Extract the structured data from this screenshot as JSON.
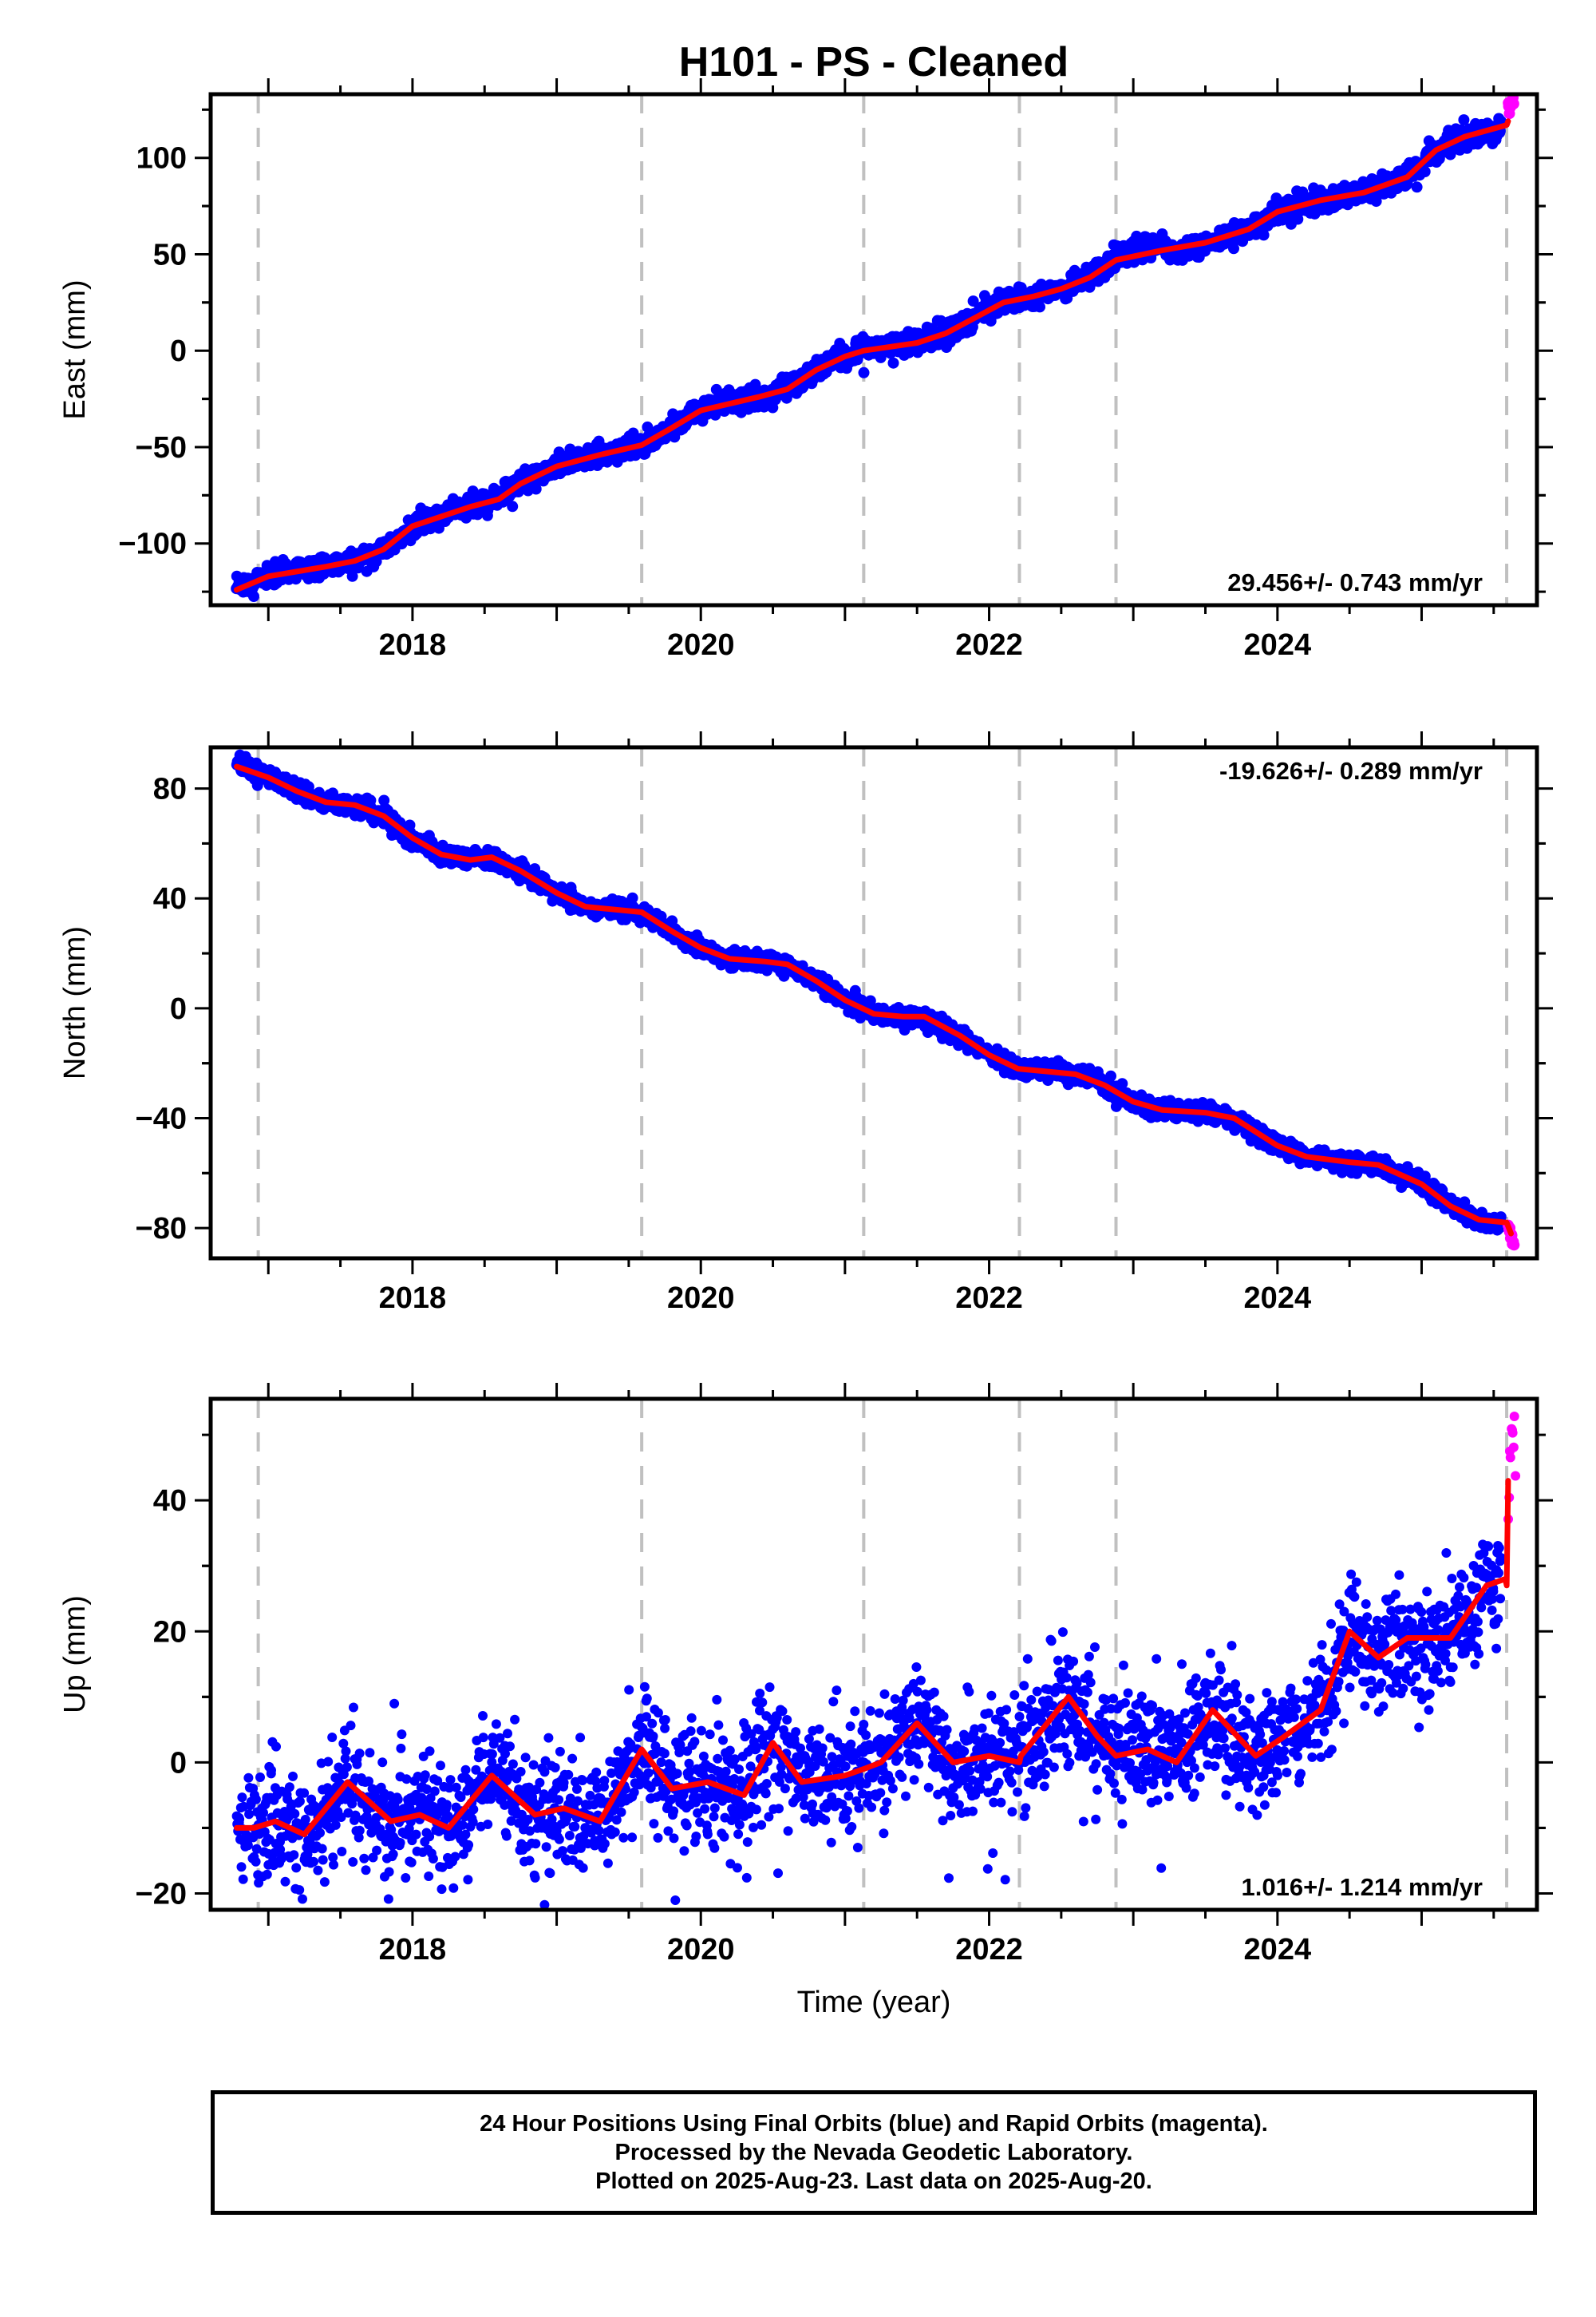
{
  "title": "H101  - PS - Cleaned",
  "colors": {
    "final": "#0000ff",
    "rapid": "#ff00ff",
    "model": "#ff0000",
    "grid": "#c0c0c0"
  },
  "xlabel": "Time (year)",
  "footer": {
    "line1": "24 Hour Positions Using Final Orbits (blue) and Rapid Orbits (magenta).",
    "line2": "Processed by the Nevada Geodetic Laboratory.",
    "line3": "Plotted on 2025-Aug-23. Last data on 2025-Aug-20."
  },
  "chart_data": [
    {
      "type": "scatter",
      "component": "east",
      "ylabel": "East (mm)",
      "xlim": [
        2016.6,
        2025.8
      ],
      "ylim": [
        -132,
        133
      ],
      "xticks": [
        2018,
        2020,
        2022,
        2024
      ],
      "xtick_labels": [
        "2018",
        "2020",
        "2022",
        "2024"
      ],
      "yticks": [
        -100,
        -50,
        0,
        50,
        100
      ],
      "ytick_labels": [
        "−100",
        "−50",
        "0",
        "50",
        "100"
      ],
      "event_lines": [
        2016.93,
        2019.59,
        2021.13,
        2022.21,
        2022.88,
        2025.59
      ],
      "rate_label": "29.456+/- 0.743 mm/yr",
      "rate_position": "bottom-right",
      "series": [
        {
          "kind": "final-orbits",
          "x": [
            2016.78,
            2016.9,
            2017.0,
            2017.2,
            2017.4,
            2017.6,
            2017.8,
            2018.0,
            2018.2,
            2018.4,
            2018.6,
            2018.75,
            2019.0,
            2019.3,
            2019.59,
            2019.8,
            2020.0,
            2020.2,
            2020.4,
            2020.6,
            2020.8,
            2021.0,
            2021.13,
            2021.3,
            2021.5,
            2021.7,
            2021.9,
            2022.1,
            2022.3,
            2022.5,
            2022.7,
            2022.88,
            2023.1,
            2023.2,
            2023.25,
            2023.5,
            2023.8,
            2024.0,
            2024.3,
            2024.6,
            2024.9,
            2025.1,
            2025.3,
            2025.55
          ],
          "y": [
            -125,
            -120,
            -117,
            -113,
            -112,
            -109,
            -103,
            -91,
            -85,
            -81,
            -77,
            -68,
            -60,
            -54,
            -49,
            -40,
            -31,
            -27,
            -24,
            -20,
            -10,
            -3,
            1,
            2,
            4,
            9,
            17,
            25,
            28,
            32,
            38,
            48,
            54,
            56,
            50,
            55,
            63,
            72,
            78,
            82,
            90,
            104,
            110,
            116
          ],
          "scatter": 2.8
        },
        {
          "kind": "rapid-orbits",
          "x": [
            2025.6,
            2025.62,
            2025.64
          ],
          "y": [
            125,
            128,
            130
          ],
          "scatter": 1.5
        },
        {
          "kind": "model",
          "x": [
            2016.78,
            2017.0,
            2017.4,
            2017.6,
            2017.8,
            2018.0,
            2018.4,
            2018.6,
            2018.75,
            2019.0,
            2019.3,
            2019.59,
            2019.8,
            2020.0,
            2020.4,
            2020.6,
            2020.8,
            2021.0,
            2021.13,
            2021.5,
            2021.7,
            2021.9,
            2022.1,
            2022.3,
            2022.5,
            2022.7,
            2022.88,
            2023.2,
            2023.5,
            2023.8,
            2024.0,
            2024.3,
            2024.6,
            2024.9,
            2025.1,
            2025.3,
            2025.59,
            2025.6
          ],
          "y": [
            -124,
            -117,
            -112,
            -109,
            -103,
            -91,
            -81,
            -77,
            -69,
            -60,
            -54,
            -49,
            -40,
            -31,
            -24,
            -20,
            -10,
            -3,
            0,
            4,
            9,
            17,
            25,
            28,
            32,
            38,
            47,
            52,
            56,
            63,
            72,
            78,
            82,
            90,
            104,
            111,
            117,
            119
          ]
        }
      ]
    },
    {
      "type": "scatter",
      "component": "north",
      "ylabel": "North (mm)",
      "xlim": [
        2016.6,
        2025.8
      ],
      "ylim": [
        -91,
        95
      ],
      "xticks": [
        2018,
        2020,
        2022,
        2024
      ],
      "xtick_labels": [
        "2018",
        "2020",
        "2022",
        "2024"
      ],
      "yticks": [
        -80,
        -40,
        0,
        40,
        80
      ],
      "ytick_labels": [
        "−80",
        "−40",
        "0",
        "40",
        "80"
      ],
      "event_lines": [
        2016.93,
        2019.59,
        2021.13,
        2022.21,
        2022.88,
        2025.59
      ],
      "rate_label": "-19.626+/- 0.289 mm/yr",
      "rate_position": "top-right",
      "series": [
        {
          "kind": "final-orbits",
          "x": [
            2016.78,
            2017.0,
            2017.2,
            2017.4,
            2017.6,
            2017.8,
            2018.0,
            2018.2,
            2018.4,
            2018.55,
            2018.75,
            2019.0,
            2019.2,
            2019.59,
            2019.8,
            2020.0,
            2020.2,
            2020.45,
            2020.6,
            2020.8,
            2021.0,
            2021.2,
            2021.4,
            2021.55,
            2021.8,
            2022.0,
            2022.2,
            2022.4,
            2022.6,
            2022.8,
            2023.0,
            2023.2,
            2023.5,
            2023.7,
            2024.0,
            2024.2,
            2024.5,
            2024.7,
            2025.0,
            2025.2,
            2025.4,
            2025.55
          ],
          "y": [
            89,
            84,
            79,
            75,
            74,
            70,
            62,
            56,
            54,
            55,
            50,
            42,
            37,
            35,
            28,
            22,
            18,
            17,
            16,
            10,
            3,
            -2,
            -3,
            -3,
            -10,
            -17,
            -22,
            -23,
            -24,
            -28,
            -34,
            -37,
            -38,
            -40,
            -50,
            -54,
            -56,
            -57,
            -64,
            -72,
            -78,
            -79
          ],
          "scatter": 1.6
        },
        {
          "kind": "rapid-orbits",
          "x": [
            2025.6,
            2025.62,
            2025.64
          ],
          "y": [
            -80,
            -83,
            -86
          ],
          "scatter": 1.2
        },
        {
          "kind": "model",
          "x": [
            2016.78,
            2017.0,
            2017.2,
            2017.4,
            2017.6,
            2017.8,
            2018.0,
            2018.2,
            2018.4,
            2018.55,
            2018.75,
            2019.0,
            2019.2,
            2019.59,
            2019.8,
            2020.0,
            2020.2,
            2020.45,
            2020.6,
            2020.8,
            2021.0,
            2021.2,
            2021.4,
            2021.55,
            2021.8,
            2022.0,
            2022.2,
            2022.4,
            2022.6,
            2022.8,
            2023.0,
            2023.2,
            2023.5,
            2023.7,
            2024.0,
            2024.2,
            2024.5,
            2024.7,
            2025.0,
            2025.2,
            2025.4,
            2025.59,
            2025.62
          ],
          "y": [
            88,
            84,
            79,
            75,
            74,
            70,
            62,
            56,
            54,
            55,
            50,
            42,
            37,
            35,
            28,
            22,
            18,
            17,
            16,
            10,
            3,
            -2,
            -3,
            -3,
            -10,
            -17,
            -22,
            -23,
            -24,
            -28,
            -34,
            -37,
            -38,
            -40,
            -50,
            -54,
            -56,
            -57,
            -64,
            -72,
            -77,
            -78,
            -82
          ]
        }
      ]
    },
    {
      "type": "scatter",
      "component": "up",
      "ylabel": "Up (mm)",
      "xlim": [
        2016.6,
        2025.8
      ],
      "ylim": [
        -22.5,
        55.5
      ],
      "xticks": [
        2018,
        2020,
        2022,
        2024
      ],
      "xtick_labels": [
        "2018",
        "2020",
        "2022",
        "2024"
      ],
      "yticks": [
        -20,
        0,
        20,
        40
      ],
      "ytick_labels": [
        "−20",
        "0",
        "20",
        "40"
      ],
      "event_lines": [
        2016.93,
        2019.59,
        2021.13,
        2022.21,
        2022.88,
        2025.59
      ],
      "rate_label": "1.016+/- 1.214 mm/yr",
      "rate_position": "bottom-right",
      "series": [
        {
          "kind": "final-orbits",
          "x": [
            2016.78,
            2017.0,
            2017.25,
            2017.55,
            2017.85,
            2018.05,
            2018.25,
            2018.55,
            2018.85,
            2019.05,
            2019.3,
            2019.59,
            2019.8,
            2020.05,
            2020.3,
            2020.5,
            2020.7,
            2021.0,
            2021.13,
            2021.25,
            2021.5,
            2021.75,
            2022.0,
            2022.21,
            2022.55,
            2022.75,
            2022.88,
            2023.1,
            2023.3,
            2023.55,
            2023.85,
            2024.05,
            2024.3,
            2024.5,
            2024.7,
            2024.9,
            2025.2,
            2025.45,
            2025.55
          ],
          "y": [
            -10,
            -9,
            -11,
            -3,
            -9,
            -8,
            -10,
            -2,
            -8,
            -7,
            -9,
            2,
            -4,
            -3,
            -5,
            3,
            -3,
            -2,
            -1,
            0,
            6,
            0,
            1,
            1,
            10,
            4,
            1,
            2,
            0,
            8,
            1,
            4,
            8,
            20,
            16,
            19,
            19,
            27,
            28
          ],
          "scatter": 4.2
        },
        {
          "kind": "rapid-orbits",
          "x": [
            2025.6,
            2025.61,
            2025.62,
            2025.63,
            2025.64,
            2025.65
          ],
          "y": [
            40,
            46,
            48,
            50,
            54,
            44
          ],
          "scatter": 2.5
        },
        {
          "kind": "model",
          "x": [
            2016.78,
            2016.9,
            2017.05,
            2017.25,
            2017.55,
            2017.85,
            2018.05,
            2018.25,
            2018.55,
            2018.85,
            2019.05,
            2019.3,
            2019.59,
            2019.8,
            2020.05,
            2020.3,
            2020.5,
            2020.7,
            2021.0,
            2021.13,
            2021.25,
            2021.5,
            2021.75,
            2022.0,
            2022.21,
            2022.22,
            2022.55,
            2022.75,
            2022.88,
            2023.1,
            2023.3,
            2023.55,
            2023.85,
            2024.05,
            2024.3,
            2024.5,
            2024.7,
            2024.9,
            2025.2,
            2025.45,
            2025.58,
            2025.59,
            2025.6
          ],
          "y": [
            -10,
            -10,
            -9,
            -11,
            -3,
            -9,
            -8,
            -10,
            -2,
            -8,
            -7,
            -9,
            2,
            -4,
            -3,
            -5,
            3,
            -3,
            -2,
            -1,
            0,
            6,
            0,
            1,
            0,
            1,
            10,
            4,
            1,
            2,
            0,
            8,
            1,
            4,
            8,
            20,
            16,
            19,
            19,
            27,
            28,
            27,
            43
          ]
        }
      ]
    }
  ]
}
